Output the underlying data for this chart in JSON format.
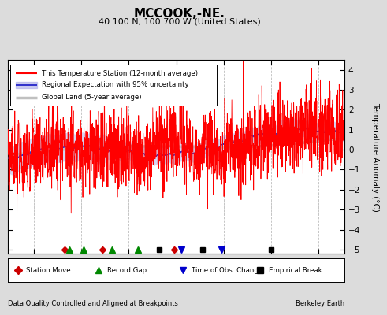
{
  "title": "MCCOOK,-NE.",
  "subtitle": "40.100 N, 100.700 W (United States)",
  "ylabel": "Temperature Anomaly (°C)",
  "xlabel_left": "Data Quality Controlled and Aligned at Breakpoints",
  "xlabel_right": "Berkeley Earth",
  "year_start": 1869,
  "year_end": 2011,
  "ylim": [
    -5.2,
    4.5
  ],
  "yticks": [
    -5,
    -4,
    -3,
    -2,
    -1,
    0,
    1,
    2,
    3,
    4
  ],
  "xticks": [
    1880,
    1900,
    1920,
    1940,
    1960,
    1980,
    2000
  ],
  "bg_color": "#dcdcdc",
  "plot_bg_color": "#ffffff",
  "legend_items": [
    {
      "label": "This Temperature Station (12-month average)",
      "color": "#ff0000",
      "lw": 1.0
    },
    {
      "label": "Regional Expectation with 95% uncertainty",
      "color": "#3333cc",
      "lw": 1.0
    },
    {
      "label": "Global Land (5-year average)",
      "color": "#b0b0b0",
      "lw": 2.5
    }
  ],
  "marker_items": [
    {
      "label": "Station Move",
      "color": "#cc0000",
      "marker": "D"
    },
    {
      "label": "Record Gap",
      "color": "#008800",
      "marker": "^"
    },
    {
      "label": "Time of Obs. Change",
      "color": "#0000cc",
      "marker": "v"
    },
    {
      "label": "Empirical Break",
      "color": "#000000",
      "marker": "s"
    }
  ],
  "station_moves": [
    1893,
    1909,
    1939
  ],
  "record_gaps": [
    1895,
    1901,
    1913,
    1924
  ],
  "tobs_changes": [
    1942,
    1959
  ],
  "emp_breaks": [
    1933,
    1951,
    1980
  ],
  "seed": 42
}
